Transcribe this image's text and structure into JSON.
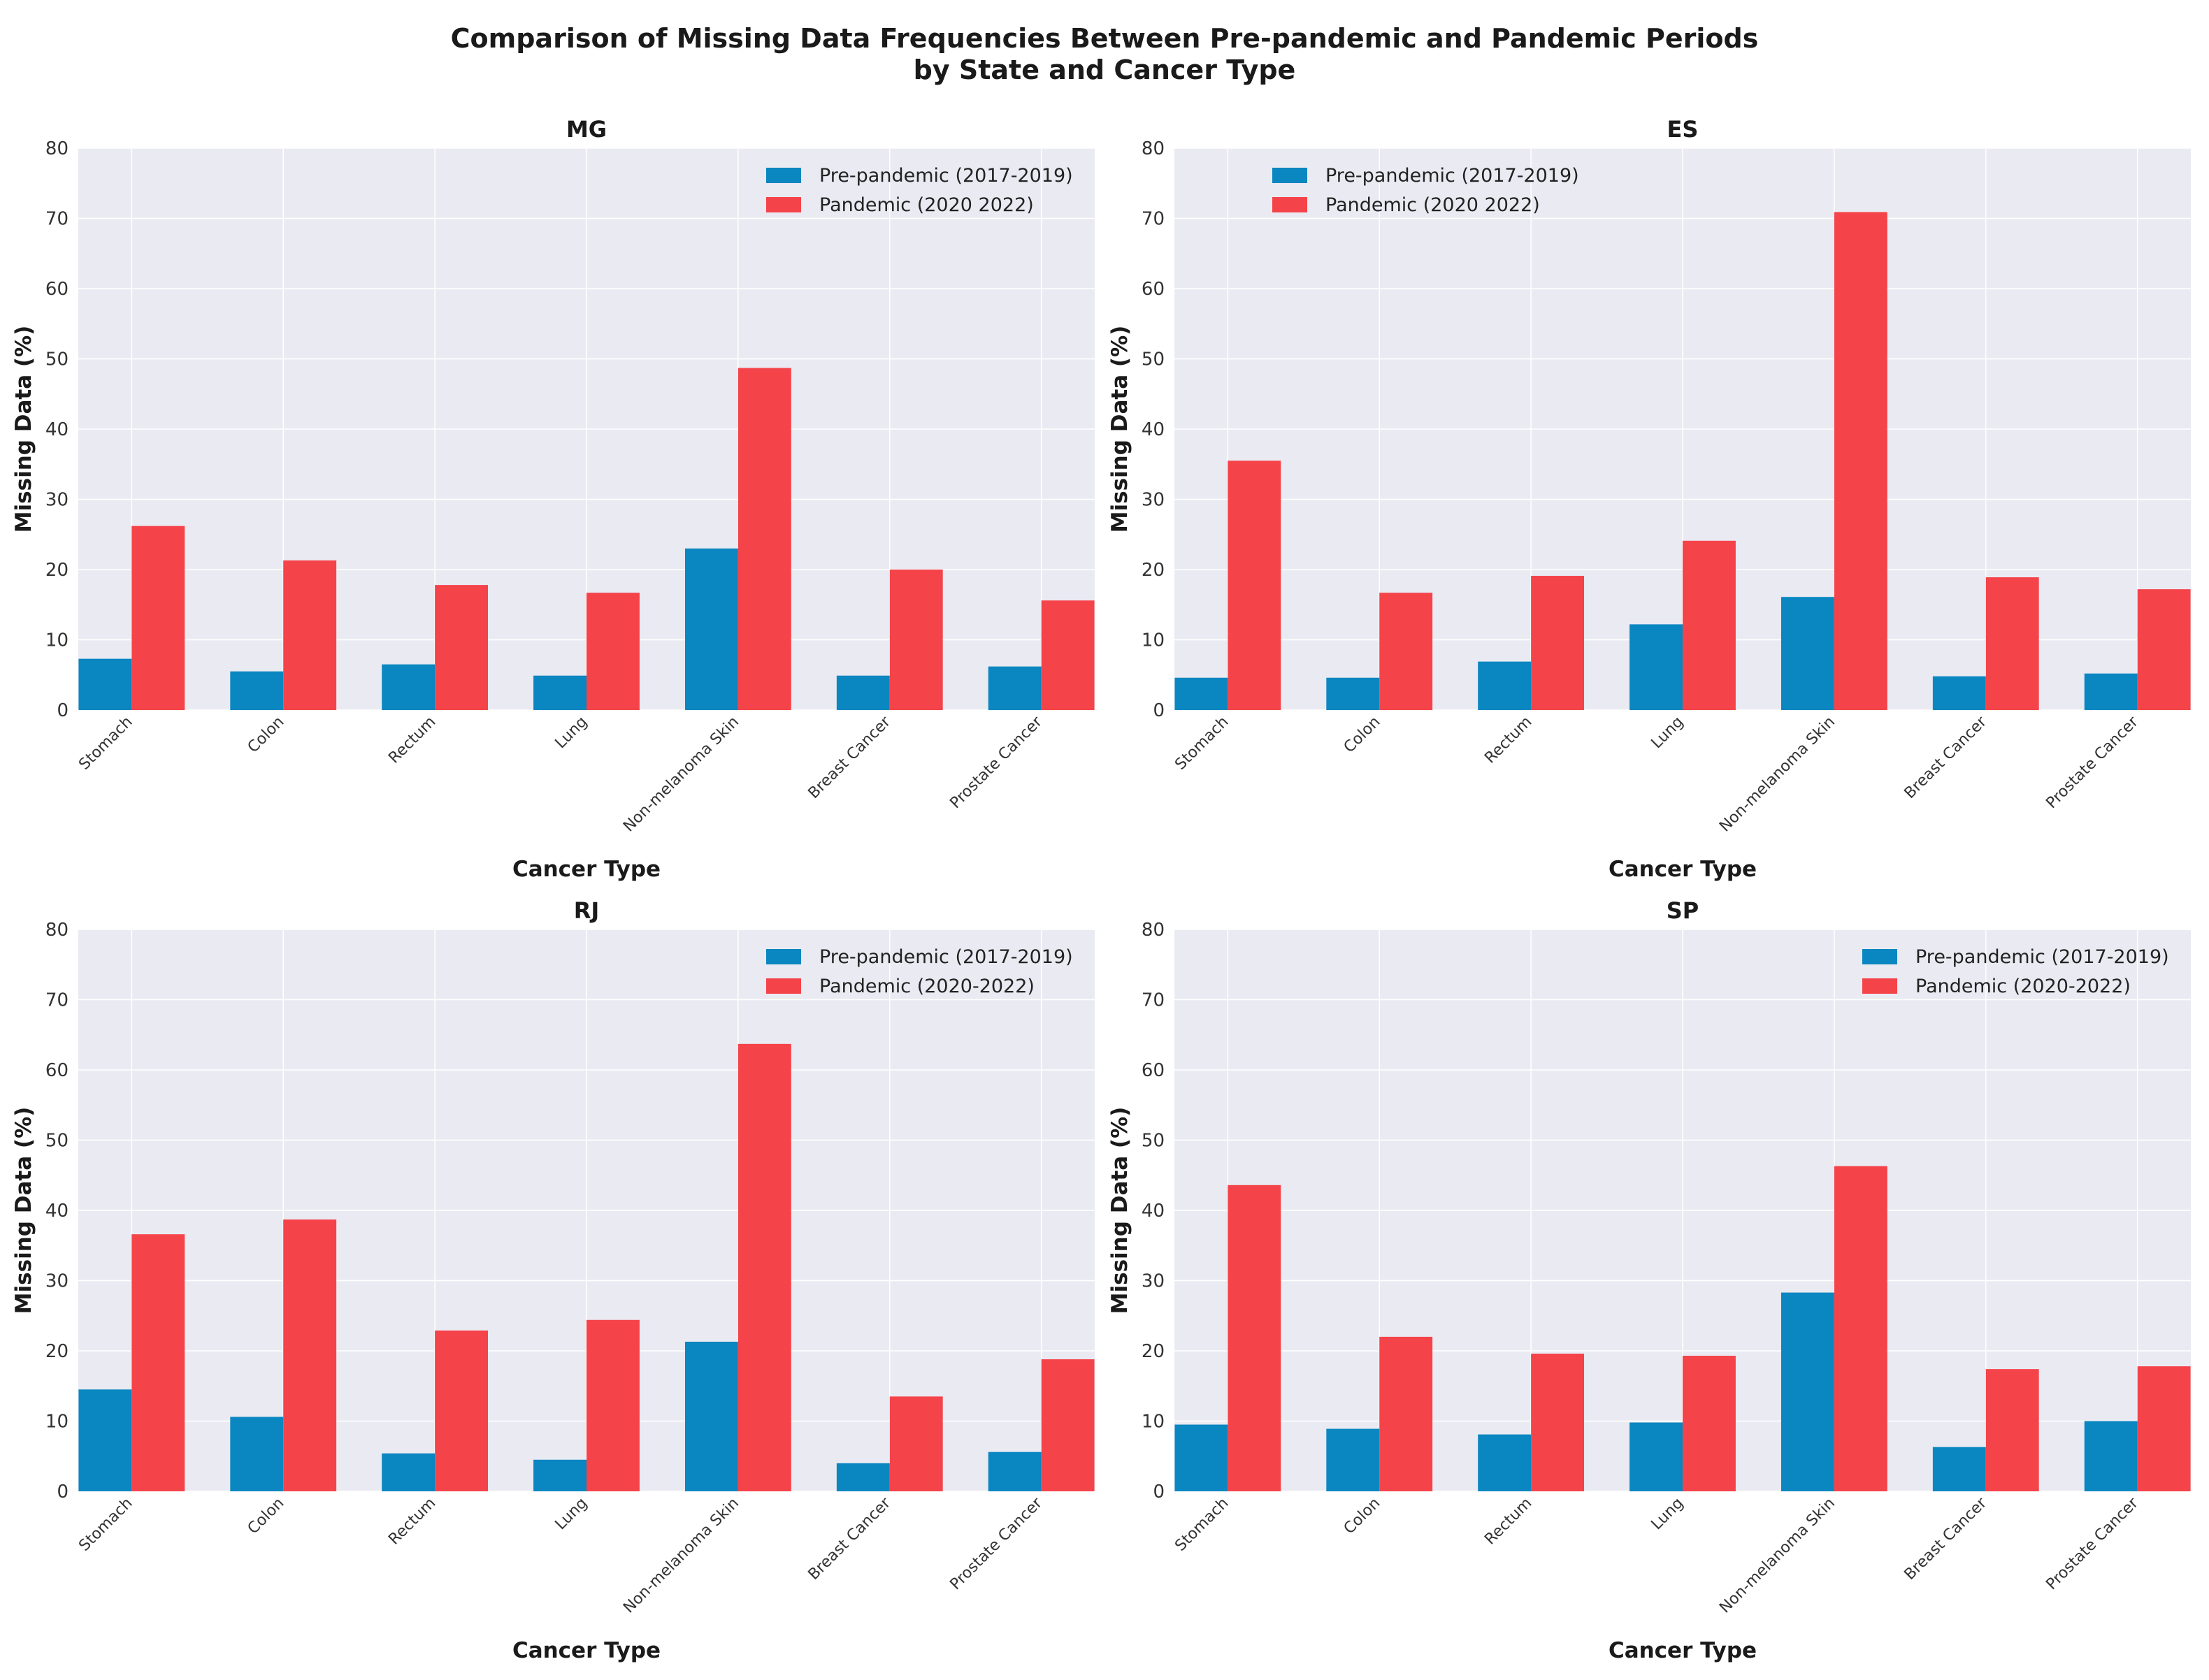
{
  "figure_title_line1": "Comparison of Missing Data Frequencies Between Pre-pandemic and Pandemic Periods",
  "figure_title_line2": "by State and Cancer Type",
  "colors": {
    "pre": "#0a86c0",
    "pandemic": "#f5434a",
    "panel_bg": "#eaeaf2",
    "grid": "#ffffff"
  },
  "chart_data": [
    {
      "type": "bar",
      "title": "MG",
      "xlabel": "Cancer Type",
      "ylabel": "Missing Data (%)",
      "ylim": [
        0,
        80
      ],
      "yticks": [
        0,
        10,
        20,
        30,
        40,
        50,
        60,
        70,
        80
      ],
      "legend_position": "top-right",
      "categories": [
        "Stomach",
        "Colon",
        "Rectum",
        "Lung",
        "Non-melanoma Skin",
        "Breast Cancer",
        "Prostate Cancer"
      ],
      "series": [
        {
          "name": "Pre-pandemic (2017-2019)",
          "values": [
            7.3,
            5.5,
            6.5,
            4.9,
            23.0,
            4.9,
            6.2
          ]
        },
        {
          "name": "Pandemic (2020 2022)",
          "values": [
            26.2,
            21.3,
            17.8,
            16.7,
            48.7,
            20.0,
            15.6
          ]
        }
      ]
    },
    {
      "type": "bar",
      "title": "ES",
      "xlabel": "Cancer Type",
      "ylabel": "Missing Data (%)",
      "ylim": [
        0,
        80
      ],
      "yticks": [
        0,
        10,
        20,
        30,
        40,
        50,
        60,
        70,
        80
      ],
      "legend_position": "top-left",
      "categories": [
        "Stomach",
        "Colon",
        "Rectum",
        "Lung",
        "Non-melanoma Skin",
        "Breast Cancer",
        "Prostate Cancer"
      ],
      "series": [
        {
          "name": "Pre-pandemic (2017-2019)",
          "values": [
            4.6,
            4.6,
            6.9,
            12.2,
            16.1,
            4.8,
            5.2
          ]
        },
        {
          "name": "Pandemic (2020 2022)",
          "values": [
            35.5,
            16.7,
            19.1,
            24.1,
            70.9,
            18.9,
            17.2
          ]
        }
      ]
    },
    {
      "type": "bar",
      "title": "RJ",
      "xlabel": "Cancer Type",
      "ylabel": "Missing Data (%)",
      "ylim": [
        0,
        80
      ],
      "yticks": [
        0,
        10,
        20,
        30,
        40,
        50,
        60,
        70,
        80
      ],
      "legend_position": "top-right",
      "categories": [
        "Stomach",
        "Colon",
        "Rectum",
        "Lung",
        "Non-melanoma Skin",
        "Breast Cancer",
        "Prostate Cancer"
      ],
      "series": [
        {
          "name": "Pre-pandemic (2017-2019)",
          "values": [
            14.5,
            10.6,
            5.4,
            4.5,
            21.3,
            4.0,
            5.6
          ]
        },
        {
          "name": "Pandemic (2020-2022)",
          "values": [
            36.6,
            38.7,
            22.9,
            24.4,
            63.7,
            13.5,
            18.8
          ]
        }
      ]
    },
    {
      "type": "bar",
      "title": "SP",
      "xlabel": "Cancer Type",
      "ylabel": "Missing Data (%)",
      "ylim": [
        0,
        80
      ],
      "yticks": [
        0,
        10,
        20,
        30,
        40,
        50,
        60,
        70,
        80
      ],
      "legend_position": "top-right",
      "categories": [
        "Stomach",
        "Colon",
        "Rectum",
        "Lung",
        "Non-melanoma Skin",
        "Breast Cancer",
        "Prostate Cancer"
      ],
      "series": [
        {
          "name": "Pre-pandemic (2017-2019)",
          "values": [
            9.5,
            8.9,
            8.1,
            9.8,
            28.3,
            6.3,
            10.0
          ]
        },
        {
          "name": "Pandemic (2020-2022)",
          "values": [
            43.6,
            22.0,
            19.6,
            19.3,
            46.3,
            17.4,
            17.8
          ]
        }
      ]
    }
  ]
}
